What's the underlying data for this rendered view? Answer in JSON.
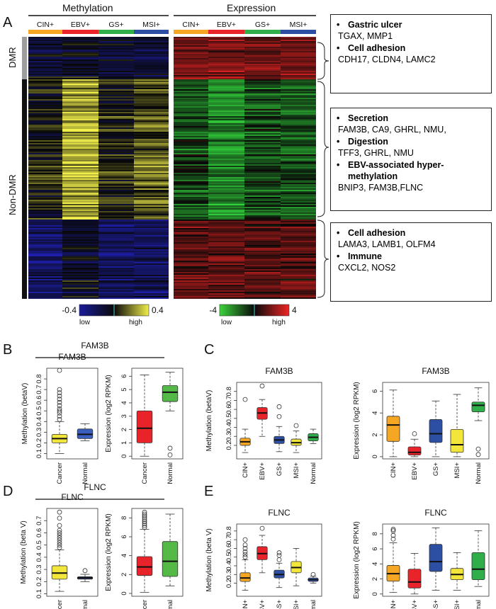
{
  "colors": {
    "cin": "#f5a623",
    "ebv": "#e8232a",
    "gs": "#2fae49",
    "msi": "#2d4fa3",
    "cancer_box": "#f2e63a",
    "normal_box": "#3a5fbf",
    "cancer_expr": "#e8232a",
    "normal_expr": "#55b948",
    "meth_low": "#1a1a9c",
    "meth_high": "#f0ee4a",
    "expr_low": "#3bd43b",
    "expr_high": "#f02424"
  },
  "panel_a": {
    "letter": "A",
    "methylation_title": "Methylation",
    "expression_title": "Expression",
    "groups": [
      "CIN+",
      "EBV+",
      "GS+",
      "MSI+"
    ],
    "row_labels": {
      "dmr": "DMR",
      "non_dmr": "Non-DMR"
    },
    "meth_scale": {
      "min_label": "-0.4",
      "max_label": "0.4",
      "low": "low",
      "high": "high"
    },
    "expr_scale": {
      "min_label": "-4",
      "max_label": "4",
      "low": "low",
      "high": "high"
    },
    "annotations": [
      {
        "items": [
          {
            "category": "Gastric ulcer",
            "genes": "TGAX, MMP1"
          },
          {
            "category": "Cell adhesion",
            "genes": "CDH17, CLDN4, LAMC2"
          }
        ]
      },
      {
        "items": [
          {
            "category": "Secretion",
            "genes": "FAM3B, CA9, GHRL, NMU,"
          },
          {
            "category": "Digestion",
            "genes": "TFF3, GHRL, NMU"
          },
          {
            "category": "EBV-associated hyper-methylation",
            "genes": "BNIP3, FAM3B,FLNC"
          }
        ]
      },
      {
        "items": [
          {
            "category": "Cell adhesion",
            "genes": "LAMA3, LAMB1, OLFM4"
          },
          {
            "category": "Immune",
            "genes": "CXCL2, NOS2"
          }
        ]
      }
    ]
  },
  "chart_data": [
    {
      "panel": "B",
      "type": "box",
      "title": "FAM3B",
      "ylabel": "Methylation (betaV)",
      "categories": [
        "Cancer",
        "Normal"
      ],
      "ylim": [
        0.05,
        0.9
      ],
      "yticks": [
        0.1,
        0.2,
        0.3,
        0.4,
        0.5,
        0.6,
        0.7,
        0.8
      ],
      "boxes": [
        {
          "min": 0.1,
          "q1": 0.2,
          "median": 0.24,
          "q3": 0.28,
          "max": 0.4,
          "outliers": [
            0.42,
            0.45,
            0.48,
            0.5,
            0.52,
            0.55,
            0.58,
            0.61,
            0.64,
            0.67,
            0.7,
            0.88
          ],
          "color": "cancer_box"
        },
        {
          "min": 0.22,
          "q1": 0.24,
          "median": 0.28,
          "q3": 0.33,
          "max": 0.38,
          "outliers": [],
          "color": "normal_box"
        }
      ]
    },
    {
      "panel": "B",
      "type": "box",
      "title": "",
      "ylabel": "Expression (log2 RPKM)",
      "categories": [
        "Cancer",
        "Normal"
      ],
      "ylim": [
        -0.2,
        6.6
      ],
      "yticks": [
        0,
        1,
        2,
        3,
        4,
        5,
        6
      ],
      "boxes": [
        {
          "min": 0.0,
          "q1": 1.0,
          "median": 2.1,
          "q3": 3.4,
          "max": 6.1,
          "outliers": [],
          "color": "cancer_expr"
        },
        {
          "min": 3.4,
          "q1": 4.1,
          "median": 4.8,
          "q3": 5.3,
          "max": 6.3,
          "outliers": [
            0.1,
            0.6
          ],
          "color": "normal_expr"
        }
      ]
    },
    {
      "panel": "C",
      "type": "box",
      "title": "FAM3B",
      "ylabel": "Methylation (betaV)",
      "categories": [
        "CIN+",
        "EBV+",
        "GS+",
        "MSI+",
        "Normal"
      ],
      "ylim": [
        0.05,
        0.9
      ],
      "yticks": [
        0.2,
        0.3,
        0.4,
        0.5,
        0.6,
        0.7,
        0.8
      ],
      "boxes": [
        {
          "min": 0.12,
          "q1": 0.2,
          "median": 0.24,
          "q3": 0.28,
          "max": 0.38,
          "outliers": [
            0.71
          ],
          "color": "cin"
        },
        {
          "min": 0.3,
          "q1": 0.49,
          "median": 0.56,
          "q3": 0.62,
          "max": 0.71,
          "outliers": [
            0.86
          ],
          "color": "ebv"
        },
        {
          "min": 0.13,
          "q1": 0.22,
          "median": 0.26,
          "q3": 0.3,
          "max": 0.41,
          "outliers": [
            0.52,
            0.63
          ],
          "color": "msi"
        },
        {
          "min": 0.12,
          "q1": 0.2,
          "median": 0.23,
          "q3": 0.27,
          "max": 0.36,
          "outliers": [
            0.42
          ],
          "color": "cancer_box"
        },
        {
          "min": 0.22,
          "q1": 0.25,
          "median": 0.29,
          "q3": 0.33,
          "max": 0.38,
          "outliers": [],
          "color": "gs"
        }
      ]
    },
    {
      "panel": "C",
      "type": "box",
      "title": "FAM3B",
      "ylabel": "Expression (log2 RPKM)",
      "categories": [
        "CIN+",
        "EBV+",
        "GS+",
        "MSI+",
        "Normal"
      ],
      "ylim": [
        -0.2,
        6.8
      ],
      "yticks": [
        0,
        2,
        4,
        6
      ],
      "boxes": [
        {
          "min": 0.0,
          "q1": 1.4,
          "median": 2.9,
          "q3": 3.7,
          "max": 6.1,
          "outliers": [],
          "color": "cin"
        },
        {
          "min": 0.0,
          "q1": 0.15,
          "median": 0.4,
          "q3": 0.9,
          "max": 1.6,
          "outliers": [
            2.1
          ],
          "color": "ebv"
        },
        {
          "min": 0.0,
          "q1": 1.3,
          "median": 2.1,
          "q3": 3.4,
          "max": 5.1,
          "outliers": [],
          "color": "msi"
        },
        {
          "min": 0.0,
          "q1": 0.4,
          "median": 1.1,
          "q3": 2.5,
          "max": 5.7,
          "outliers": [],
          "color": "cancer_box"
        },
        {
          "min": 3.3,
          "q1": 4.1,
          "median": 4.7,
          "q3": 5.0,
          "max": 6.3,
          "outliers": [
            0.2,
            0.7
          ],
          "color": "gs"
        }
      ]
    },
    {
      "panel": "D",
      "type": "box",
      "title": "FLNC",
      "ylabel": "Methylation (beta V)",
      "categories": [
        "Cancer",
        "Normal"
      ],
      "ylim": [
        0.08,
        0.8
      ],
      "yticks": [
        0.1,
        0.2,
        0.3,
        0.4,
        0.5,
        0.6,
        0.7
      ],
      "boxes": [
        {
          "min": 0.12,
          "q1": 0.22,
          "median": 0.27,
          "q3": 0.33,
          "max": 0.46,
          "outliers": [
            0.48,
            0.5,
            0.52,
            0.54,
            0.56,
            0.58,
            0.6,
            0.62,
            0.66,
            0.72,
            0.77
          ],
          "color": "cancer_box"
        },
        {
          "min": 0.2,
          "q1": 0.22,
          "median": 0.23,
          "q3": 0.24,
          "max": 0.26,
          "outliers": [
            0.29
          ],
          "color": "normal_box"
        }
      ]
    },
    {
      "panel": "D",
      "type": "box",
      "title": "",
      "ylabel": "Expression (log2 RPKM)",
      "categories": [
        "Cancer",
        "Normal"
      ],
      "ylim": [
        -0.3,
        9.0
      ],
      "yticks": [
        0,
        2,
        4,
        6,
        8
      ],
      "boxes": [
        {
          "min": 0.1,
          "q1": 1.9,
          "median": 2.8,
          "q3": 3.9,
          "max": 6.8,
          "outliers": [
            7.0,
            7.2,
            7.4,
            7.6,
            7.8,
            8.0,
            8.2,
            8.4,
            8.6
          ],
          "color": "cancer_expr"
        },
        {
          "min": 0.8,
          "q1": 1.8,
          "median": 3.4,
          "q3": 5.5,
          "max": 8.4,
          "outliers": [],
          "color": "normal_expr"
        }
      ]
    },
    {
      "panel": "E",
      "type": "box",
      "title": "FLNC",
      "ylabel": "Methylation (beta V)",
      "categories": [
        "CIN+",
        "EBV+",
        "GS+",
        "MSI+",
        "Normal"
      ],
      "ylim": [
        0.05,
        0.88
      ],
      "yticks": [
        0.2,
        0.3,
        0.4,
        0.5,
        0.6,
        0.7,
        0.8
      ],
      "boxes": [
        {
          "min": 0.12,
          "q1": 0.22,
          "median": 0.26,
          "q3": 0.32,
          "max": 0.47,
          "outliers": [
            0.5,
            0.53,
            0.56,
            0.6,
            0.64,
            0.7
          ],
          "color": "cin"
        },
        {
          "min": 0.32,
          "q1": 0.47,
          "median": 0.54,
          "q3": 0.62,
          "max": 0.75,
          "outliers": [
            0.83
          ],
          "color": "ebv"
        },
        {
          "min": 0.15,
          "q1": 0.26,
          "median": 0.3,
          "q3": 0.35,
          "max": 0.43,
          "outliers": [
            0.47,
            0.52,
            0.55
          ],
          "color": "msi"
        },
        {
          "min": 0.17,
          "q1": 0.32,
          "median": 0.38,
          "q3": 0.45,
          "max": 0.6,
          "outliers": [],
          "color": "cancer_box"
        },
        {
          "min": 0.2,
          "q1": 0.22,
          "median": 0.24,
          "q3": 0.26,
          "max": 0.28,
          "outliers": [
            0.3
          ],
          "color": "normal_box"
        }
      ]
    },
    {
      "panel": "E",
      "type": "box",
      "title": "FLNC",
      "ylabel": "Expression (log2 RPKM)",
      "categories": [
        "CIN+",
        "EBV+",
        "GS+",
        "MSI+",
        "Normal"
      ],
      "ylim": [
        -0.3,
        9.3
      ],
      "yticks": [
        0,
        2,
        4,
        6,
        8
      ],
      "boxes": [
        {
          "min": 0.2,
          "q1": 1.7,
          "median": 2.7,
          "q3": 3.8,
          "max": 6.8,
          "outliers": [
            7.3,
            7.8,
            8.4,
            8.6
          ],
          "color": "cin"
        },
        {
          "min": 0.0,
          "q1": 0.8,
          "median": 1.6,
          "q3": 3.3,
          "max": 5.4,
          "outliers": [],
          "color": "ebv"
        },
        {
          "min": 0.5,
          "q1": 3.0,
          "median": 4.3,
          "q3": 6.6,
          "max": 8.8,
          "outliers": [],
          "color": "msi"
        },
        {
          "min": 0.5,
          "q1": 1.9,
          "median": 2.6,
          "q3": 3.4,
          "max": 5.5,
          "outliers": [],
          "color": "cancer_box"
        },
        {
          "min": 1.0,
          "q1": 1.9,
          "median": 3.3,
          "q3": 5.5,
          "max": 8.4,
          "outliers": [],
          "color": "gs"
        }
      ]
    }
  ],
  "panel_labels": {
    "b": "B",
    "c": "C",
    "d": "D",
    "e": "E"
  },
  "panel_titles": {
    "b": "FAM3B",
    "d": "FLNC"
  }
}
